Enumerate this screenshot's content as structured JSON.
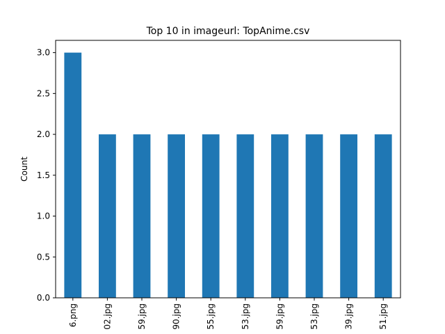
{
  "chart_data": {
    "type": "bar",
    "title": "Top 10 in imageurl: TopAnime.csv",
    "xlabel": "",
    "ylabel": "Count",
    "ylim": [
      0,
      3.15
    ],
    "yticks": [
      "0.0",
      "0.5",
      "1.0",
      "1.5",
      "2.0",
      "2.5",
      "3.0"
    ],
    "categories": [
      "6.png",
      "02.jpg",
      "59.jpg",
      "90.jpg",
      "55.jpg",
      "53.jpg",
      "59.jpg",
      "53.jpg",
      "39.jpg",
      "51.jpg"
    ],
    "values": [
      3,
      2,
      2,
      2,
      2,
      2,
      2,
      2,
      2,
      2
    ],
    "bar_color": "#1f77b4",
    "grid": false,
    "legend": "none"
  }
}
